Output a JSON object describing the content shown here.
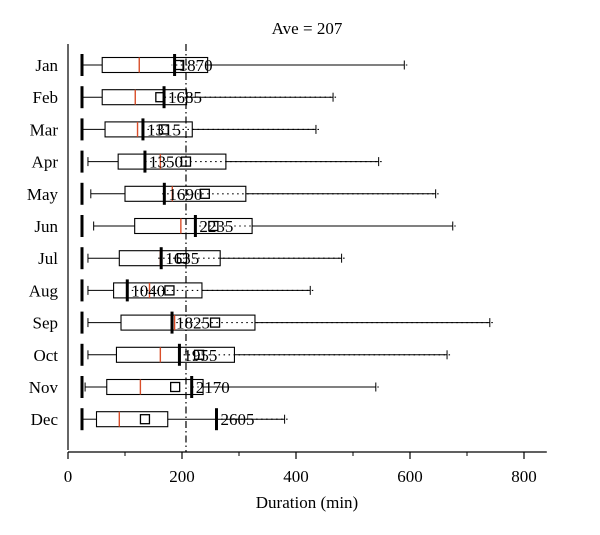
{
  "chart_data": {
    "type": "boxplot",
    "title": "Ave = 207",
    "xlabel": "Duration (min)",
    "ylabel": "",
    "xlim": [
      0,
      840
    ],
    "xticks": [
      0,
      200,
      400,
      600,
      800
    ],
    "average_line": 207,
    "months": [
      {
        "label": "Jan",
        "min": 25,
        "q1": 60,
        "median": 125,
        "mean": 195,
        "q3": 245,
        "whisker": 590,
        "max_value": 1870
      },
      {
        "label": "Feb",
        "min": 25,
        "q1": 60,
        "median": 118,
        "mean": 162,
        "q3": 208,
        "whisker": 465,
        "max_value": 1685
      },
      {
        "label": "Mar",
        "min": 25,
        "q1": 65,
        "median": 122,
        "mean": 168,
        "q3": 218,
        "whisker": 435,
        "max_value": 1315
      },
      {
        "label": "Apr",
        "min": 35,
        "q1": 88,
        "median": 162,
        "mean": 207,
        "q3": 277,
        "whisker": 545,
        "max_value": 1350
      },
      {
        "label": "May",
        "min": 40,
        "q1": 100,
        "median": 183,
        "mean": 240,
        "q3": 312,
        "whisker": 645,
        "max_value": 1690
      },
      {
        "label": "Jun",
        "min": 45,
        "q1": 117,
        "median": 198,
        "mean": 255,
        "q3": 323,
        "whisker": 675,
        "max_value": 2235
      },
      {
        "label": "Jul",
        "min": 35,
        "q1": 90,
        "median": 162,
        "mean": 200,
        "q3": 267,
        "whisker": 480,
        "max_value": 1635
      },
      {
        "label": "Aug",
        "min": 35,
        "q1": 80,
        "median": 143,
        "mean": 178,
        "q3": 235,
        "whisker": 425,
        "max_value": 1040
      },
      {
        "label": "Sep",
        "min": 35,
        "q1": 93,
        "median": 187,
        "mean": 258,
        "q3": 328,
        "whisker": 740,
        "max_value": 1825
      },
      {
        "label": "Oct",
        "min": 35,
        "q1": 85,
        "median": 162,
        "mean": 230,
        "q3": 292,
        "whisker": 665,
        "max_value": 1955
      },
      {
        "label": "Nov",
        "min": 30,
        "q1": 68,
        "median": 127,
        "mean": 188,
        "q3": 237,
        "whisker": 540,
        "max_value": 2170
      },
      {
        "label": "Dec",
        "min": 25,
        "q1": 50,
        "median": 90,
        "mean": 135,
        "q3": 175,
        "whisker": 380,
        "max_value": 2605
      }
    ],
    "colors": {
      "median": "#d94e2a",
      "box": "#000000",
      "whisker": "#000000"
    }
  }
}
